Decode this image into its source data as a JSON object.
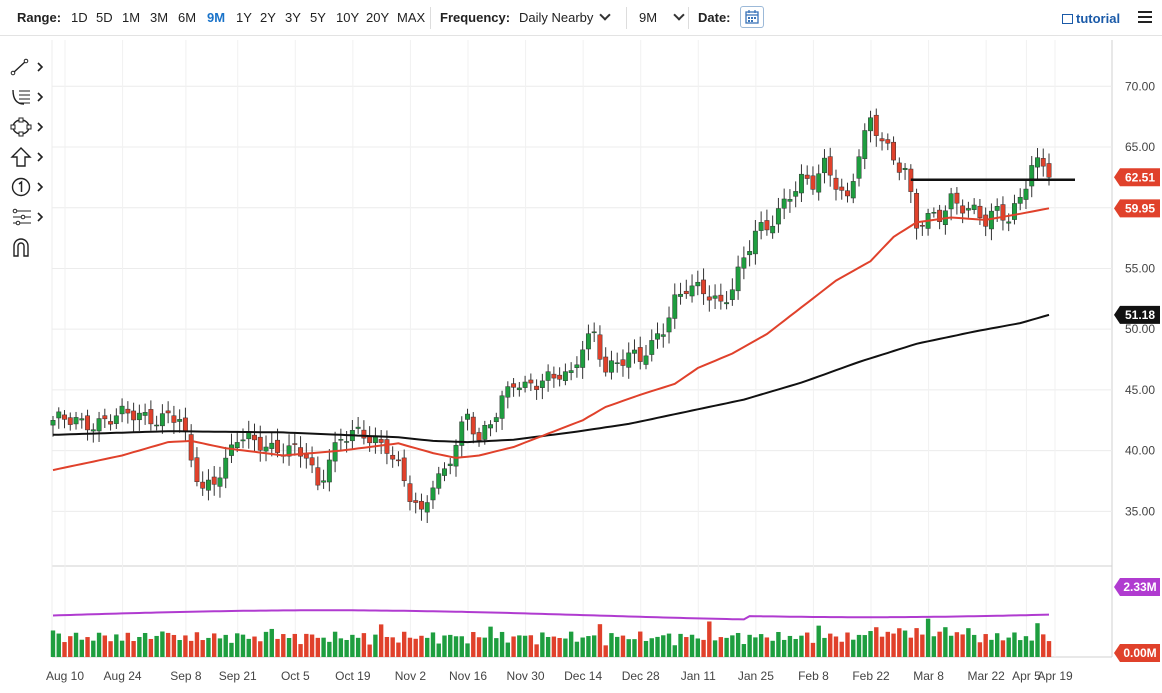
{
  "toolbar": {
    "range_label": "Range:",
    "ranges": [
      "1D",
      "5D",
      "1M",
      "3M",
      "6M",
      "9M",
      "1Y",
      "2Y",
      "3Y",
      "5Y",
      "10Y",
      "20Y",
      "MAX"
    ],
    "active_range": "9M",
    "frequency_label": "Frequency:",
    "frequency_value": "Daily Nearby",
    "period_value": "9M",
    "date_label": "Date:",
    "tutorial_label": "tutorial"
  },
  "sidebar_tools": [
    "trendline-tool",
    "fib-tool",
    "shape-tool",
    "arrow-tool",
    "count-tool",
    "pitchfork-tool",
    "magnet-tool"
  ],
  "colors": {
    "up": "#1e9e3f",
    "down": "#e0412b",
    "ma_fast": "#e0412b",
    "ma_slow": "#111111",
    "volume_avg": "#b03bd0",
    "price_label": "#e0412b",
    "level_label": "#111111"
  },
  "chart_data": {
    "type": "candlestick",
    "x_tick_labels": [
      "Aug 10",
      "Aug 24",
      "Sep 8",
      "Sep 21",
      "Oct 5",
      "Oct 19",
      "Nov 2",
      "Nov 16",
      "Nov 30",
      "Dec 14",
      "Dec 28",
      "Jan 11",
      "Jan 25",
      "Feb 8",
      "Feb 22",
      "Mar 8",
      "Mar 22",
      "Apr 5",
      "Apr 19"
    ],
    "y_ticks": [
      35,
      40,
      45,
      50,
      55,
      60,
      65,
      70
    ],
    "y_tick_labels": [
      "35.00",
      "40.00",
      "45.00",
      "50.00",
      "55.00",
      "60.00",
      "65.00",
      "70.00"
    ],
    "ylim": [
      30.5,
      72
    ],
    "price_anchors": [
      [
        0,
        42.5
      ],
      [
        5,
        42.2
      ],
      [
        10,
        42.7
      ],
      [
        15,
        42.9
      ],
      [
        20,
        42.8
      ],
      [
        22,
        42.4
      ],
      [
        24,
        39
      ],
      [
        26,
        37
      ],
      [
        28,
        37.8
      ],
      [
        30,
        39
      ],
      [
        32,
        40.8
      ],
      [
        36,
        40.8
      ],
      [
        40,
        40
      ],
      [
        44,
        39.5
      ],
      [
        46,
        37.2
      ],
      [
        48,
        39.6
      ],
      [
        50,
        41
      ],
      [
        54,
        41.2
      ],
      [
        58,
        40.6
      ],
      [
        60,
        38.6
      ],
      [
        62,
        36
      ],
      [
        64,
        34.5
      ],
      [
        66,
        37.6
      ],
      [
        68,
        38.5
      ],
      [
        70,
        40.6
      ],
      [
        72,
        42.6
      ],
      [
        74,
        40.6
      ],
      [
        76,
        42.6
      ],
      [
        78,
        44.5
      ],
      [
        80,
        45.6
      ],
      [
        82,
        44.8
      ],
      [
        84,
        45.4
      ],
      [
        86,
        46.2
      ],
      [
        88,
        46.7
      ],
      [
        90,
        46.1
      ],
      [
        92,
        48.3
      ],
      [
        94,
        49.4
      ],
      [
        96,
        46.8
      ],
      [
        98,
        47.6
      ],
      [
        100,
        47.8
      ],
      [
        102,
        47.3
      ],
      [
        104,
        48.5
      ],
      [
        106,
        50.3
      ],
      [
        108,
        52.6
      ],
      [
        110,
        53.4
      ],
      [
        112,
        53
      ],
      [
        114,
        52.7
      ],
      [
        116,
        52.2
      ],
      [
        118,
        53.8
      ],
      [
        120,
        55.7
      ],
      [
        122,
        57.7
      ],
      [
        124,
        58.2
      ],
      [
        126,
        59.9
      ],
      [
        128,
        61.4
      ],
      [
        130,
        62.2
      ],
      [
        132,
        61.7
      ],
      [
        134,
        63.4
      ],
      [
        136,
        62.3
      ],
      [
        138,
        60.8
      ],
      [
        140,
        64.5
      ],
      [
        142,
        66.8
      ],
      [
        144,
        65.5
      ],
      [
        146,
        64.2
      ],
      [
        148,
        63.4
      ],
      [
        150,
        58.5
      ],
      [
        152,
        58.8
      ],
      [
        154,
        59.2
      ],
      [
        156,
        60.9
      ],
      [
        158,
        60.4
      ],
      [
        160,
        59.6
      ],
      [
        162,
        58.6
      ],
      [
        164,
        59.6
      ],
      [
        166,
        59.4
      ],
      [
        168,
        61
      ],
      [
        170,
        63.4
      ],
      [
        172,
        63.2
      ],
      [
        173,
        62.51
      ]
    ],
    "last_price": 62.51,
    "horizontal_level": 62.3,
    "ma_fast_anchors": [
      [
        0,
        38.4
      ],
      [
        12,
        39.6
      ],
      [
        20,
        40.7
      ],
      [
        24,
        40.8
      ],
      [
        30,
        40.2
      ],
      [
        40,
        39.6
      ],
      [
        50,
        40
      ],
      [
        60,
        40.6
      ],
      [
        66,
        39.8
      ],
      [
        70,
        39.4
      ],
      [
        74,
        39.6
      ],
      [
        80,
        40.3
      ],
      [
        86,
        41.4
      ],
      [
        92,
        42.5
      ],
      [
        96,
        43.6
      ],
      [
        102,
        44.6
      ],
      [
        108,
        45.5
      ],
      [
        112,
        46.8
      ],
      [
        118,
        48
      ],
      [
        124,
        49.6
      ],
      [
        130,
        51.8
      ],
      [
        136,
        54
      ],
      [
        142,
        55.6
      ],
      [
        146,
        57.6
      ],
      [
        150,
        58.8
      ],
      [
        156,
        59.2
      ],
      [
        162,
        59
      ],
      [
        168,
        59.5
      ],
      [
        173,
        59.95
      ]
    ],
    "ma_fast_last": 59.95,
    "ma_slow_anchors": [
      [
        0,
        41.3
      ],
      [
        20,
        41.6
      ],
      [
        40,
        41.5
      ],
      [
        60,
        41.1
      ],
      [
        66,
        40.8
      ],
      [
        72,
        40.7
      ],
      [
        80,
        40.9
      ],
      [
        90,
        41.5
      ],
      [
        100,
        42.2
      ],
      [
        110,
        43.2
      ],
      [
        120,
        44.2
      ],
      [
        130,
        45.6
      ],
      [
        140,
        47.3
      ],
      [
        150,
        48.8
      ],
      [
        160,
        49.8
      ],
      [
        168,
        50.5
      ],
      [
        173,
        51.18
      ]
    ],
    "ma_slow_last": 51.18,
    "volume": {
      "y_ticks": [
        "2.33M",
        "0.00M"
      ],
      "avg_label": "2.33M",
      "zero_label": "0.00M",
      "avg_line_fraction": 0.48,
      "top_label_partial": "2.33M"
    }
  }
}
